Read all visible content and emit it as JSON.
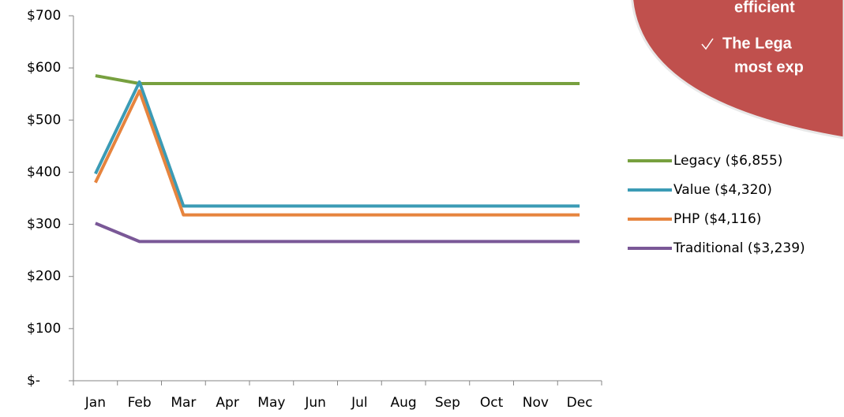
{
  "chart_data": {
    "type": "line",
    "categories": [
      "Jan",
      "Feb",
      "Mar",
      "Apr",
      "May",
      "Jun",
      "Jul",
      "Aug",
      "Sep",
      "Oct",
      "Nov",
      "Dec"
    ],
    "series": [
      {
        "name": "Legacy ($6,855)",
        "color": "#77a03f",
        "values": [
          585,
          570,
          570,
          570,
          570,
          570,
          570,
          570,
          570,
          570,
          570,
          570
        ]
      },
      {
        "name": "Value ($4,320)",
        "color": "#3b9bb5",
        "values": [
          397,
          573,
          335,
          335,
          335,
          335,
          335,
          335,
          335,
          335,
          335,
          335
        ]
      },
      {
        "name": "PHP ($4,116)",
        "color": "#e6843e",
        "values": [
          380,
          556,
          318,
          318,
          318,
          318,
          318,
          318,
          318,
          318,
          318,
          318
        ]
      },
      {
        "name": "Traditional ($3,239)",
        "color": "#7a5897",
        "values": [
          302,
          267,
          267,
          267,
          267,
          267,
          267,
          267,
          267,
          267,
          267,
          267
        ]
      }
    ],
    "ylim": [
      0,
      700
    ],
    "yticks": [
      {
        "value": 0,
        "label": "$-"
      },
      {
        "value": 100,
        "label": "$100"
      },
      {
        "value": 200,
        "label": "$200"
      },
      {
        "value": 300,
        "label": "$300"
      },
      {
        "value": 400,
        "label": "$400"
      },
      {
        "value": 500,
        "label": "$500"
      },
      {
        "value": 600,
        "label": "$600"
      },
      {
        "value": 700,
        "label": "$700"
      }
    ],
    "legend": "right",
    "annotations": [
      "efficient",
      "The Lega",
      "most exp"
    ]
  }
}
